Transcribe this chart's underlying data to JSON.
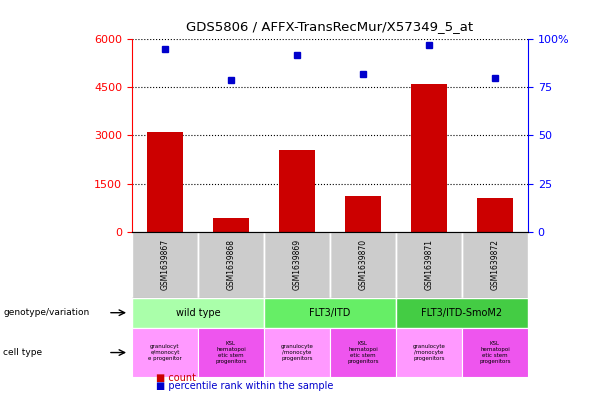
{
  "title": "GDS5806 / AFFX-TransRecMur/X57349_5_at",
  "samples": [
    "GSM1639867",
    "GSM1639868",
    "GSM1639869",
    "GSM1639870",
    "GSM1639871",
    "GSM1639872"
  ],
  "counts": [
    3100,
    420,
    2550,
    1100,
    4600,
    1050
  ],
  "percentiles": [
    95,
    79,
    92,
    82,
    97,
    80
  ],
  "bar_color": "#cc0000",
  "dot_color": "#0000cc",
  "ylim_left": [
    0,
    6000
  ],
  "ylim_right": [
    0,
    100
  ],
  "yticks_left": [
    0,
    1500,
    3000,
    4500,
    6000
  ],
  "ytick_labels_left": [
    "0",
    "1500",
    "3000",
    "4500",
    "6000"
  ],
  "yticks_right": [
    0,
    25,
    50,
    75,
    100
  ],
  "ytick_labels_right": [
    "0",
    "25",
    "50",
    "75",
    "100%"
  ],
  "genotype_groups": [
    {
      "label": "wild type",
      "start": 0,
      "end": 2,
      "color": "#aaffaa"
    },
    {
      "label": "FLT3/ITD",
      "start": 2,
      "end": 4,
      "color": "#66ee66"
    },
    {
      "label": "FLT3/ITD-SmoM2",
      "start": 4,
      "end": 6,
      "color": "#44cc44"
    }
  ],
  "cell_types": [
    {
      "label": "granulocyt\ne/monocyt\ne progenitor",
      "color": "#ff99ff"
    },
    {
      "label": "KSL\nhematopoi\netic stem\nprogenitors",
      "color": "#ee55ee"
    },
    {
      "label": "granulocyte\n/monocyte\nprogenitors",
      "color": "#ff99ff"
    },
    {
      "label": "KSL\nhematopoi\netic stem\nprogenitors",
      "color": "#ee55ee"
    },
    {
      "label": "granulocyte\n/monocyte\nprogenitors",
      "color": "#ff99ff"
    },
    {
      "label": "KSL\nhematopoi\netic stem\nprogenitors",
      "color": "#ee55ee"
    }
  ],
  "legend_count_label": "count",
  "legend_pct_label": "percentile rank within the sample",
  "background_color": "#ffffff",
  "genotype_label": "genotype/variation",
  "celltype_label": "cell type"
}
